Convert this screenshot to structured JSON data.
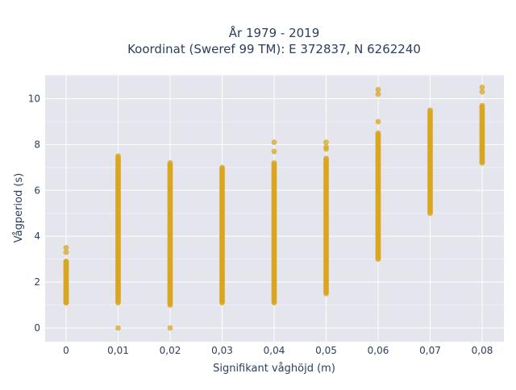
{
  "chart_data": {
    "type": "scatter",
    "title_lines": [
      "År 1979 - 2019",
      "Koordinat (Sweref 99 TM): E 372837, N 6262240"
    ],
    "xlabel": "Signifikant våghöjd (m)",
    "ylabel": "Vågperiod (s)",
    "x_categories": [
      "0",
      "0,01",
      "0,02",
      "0,03",
      "0,04",
      "0,05",
      "0,06",
      "0,07",
      "0,08"
    ],
    "y_ticks": [
      0,
      2,
      4,
      6,
      8,
      10
    ],
    "ylim": [
      -0.5,
      11.0
    ],
    "grid": true,
    "legend": "none",
    "marker_color": "#DAA520",
    "background_color": "#E5E5EE",
    "columns": [
      {
        "x": "0",
        "range": [
          1.1,
          2.9
        ],
        "points": [
          3.5,
          3.3,
          2.9,
          2.8,
          2.7,
          2.6,
          2.5,
          2.4,
          2.0,
          1.9,
          1.6,
          1.5,
          1.4,
          1.3,
          1.2,
          1.1
        ]
      },
      {
        "x": "0,01",
        "range": [
          1.1,
          7.5
        ],
        "points": [
          0.0
        ]
      },
      {
        "x": "0,02",
        "range": [
          1.0,
          7.2
        ],
        "points": [
          0.0
        ]
      },
      {
        "x": "0,03",
        "range": [
          1.1,
          7.0
        ],
        "points": []
      },
      {
        "x": "0,04",
        "range": [
          1.1,
          7.2
        ],
        "points": [
          8.1,
          7.7
        ]
      },
      {
        "x": "0,05",
        "range": [
          1.5,
          7.4
        ],
        "points": [
          8.1,
          7.9,
          7.8
        ]
      },
      {
        "x": "0,06",
        "range": [
          3.0,
          8.5
        ],
        "points": [
          10.4,
          10.2,
          9.0
        ]
      },
      {
        "x": "0,07",
        "range": [
          5.0,
          9.5
        ],
        "points": []
      },
      {
        "x": "0,08",
        "range": [
          7.2,
          9.7
        ],
        "points": [
          10.5,
          10.3
        ]
      }
    ]
  }
}
